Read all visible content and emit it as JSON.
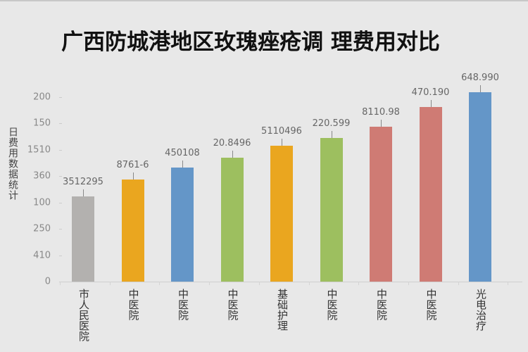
{
  "chart_data": {
    "type": "bar",
    "title": "广西防城港地区玫瑰痤疮调 理费用对比",
    "xlabel": "",
    "ylabel": "日费用数据统计",
    "ylim": [
      0,
      200
    ],
    "grid": false,
    "legend": null,
    "y_tick_labels": [
      "200",
      "150",
      "1510",
      "360",
      "100",
      "250",
      "410",
      "0"
    ],
    "categories": [
      "市人民医院",
      "中医院",
      "中医院",
      "中医院",
      "基础护理",
      "中医院",
      "中医院",
      "中医院",
      "光电治疗"
    ],
    "value_labels": [
      "3512295",
      "8761-6",
      "450108",
      "20.8496",
      "5110496",
      "220.599",
      "8110.98",
      "470.190",
      "648.990"
    ],
    "values": [
      92,
      111,
      124,
      134,
      147,
      156,
      168,
      189,
      205
    ],
    "colors": [
      "#b3b1af",
      "#eaa61f",
      "#6496c8",
      "#9dbf5f",
      "#eaa61f",
      "#9dbf5f",
      "#cf7b74",
      "#cf7b74",
      "#6496c8"
    ]
  },
  "title": "广西防城港地区玫瑰痤疮调 理费用对比",
  "ylabel": "日费用数据统计",
  "yticks": [
    "200",
    "150",
    "1510",
    "360",
    "100",
    "250",
    "410",
    "0"
  ],
  "bars": [
    {
      "category": "市人民医院",
      "label": "3512295"
    },
    {
      "category": "中医院",
      "label": "8761-6"
    },
    {
      "category": "中医院",
      "label": "450108"
    },
    {
      "category": "中医院",
      "label": "20.8496"
    },
    {
      "category": "基础护理",
      "label": "5110496"
    },
    {
      "category": "中医院",
      "label": "220.599"
    },
    {
      "category": "中医院",
      "label": "8110.98"
    },
    {
      "category": "中医院",
      "label": "470.190"
    },
    {
      "category": "光电治疗",
      "label": "648.990"
    }
  ]
}
